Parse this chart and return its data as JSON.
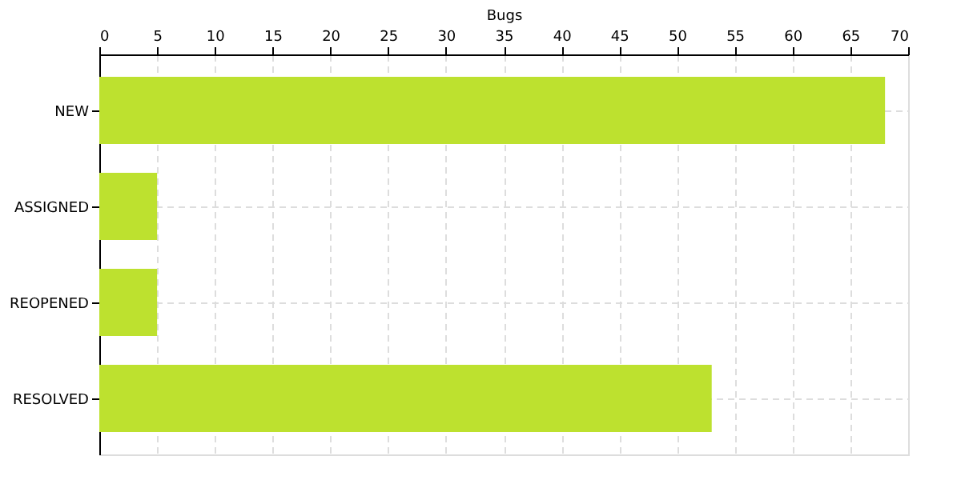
{
  "chart_data": {
    "type": "bar",
    "orientation": "horizontal",
    "xlabel": "Bugs",
    "categories": [
      "NEW",
      "ASSIGNED",
      "REOPENED",
      "RESOLVED"
    ],
    "values": [
      68,
      5,
      5,
      53
    ],
    "color": "#bde12f",
    "xlim": [
      0,
      70
    ],
    "xticks": [
      0,
      5,
      10,
      15,
      20,
      25,
      30,
      35,
      40,
      45,
      50,
      55,
      60,
      65,
      70
    ],
    "grid": true
  }
}
